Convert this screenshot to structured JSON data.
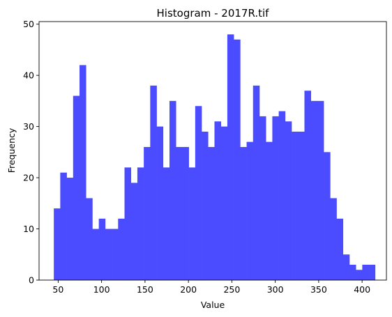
{
  "chart_data": {
    "type": "bar",
    "title": "Histogram - 2017R.tif",
    "xlabel": "Value",
    "ylabel": "Frequency",
    "bin_start": 45,
    "bin_width": 7.4,
    "values": [
      14,
      21,
      20,
      36,
      42,
      16,
      10,
      12,
      10,
      10,
      12,
      22,
      19,
      22,
      26,
      38,
      30,
      22,
      35,
      26,
      26,
      22,
      34,
      29,
      26,
      31,
      30,
      48,
      47,
      26,
      27,
      38,
      32,
      27,
      32,
      33,
      31,
      29,
      29,
      37,
      35,
      35,
      25,
      16,
      12,
      5,
      3,
      2,
      3,
      3
    ],
    "xlim": [
      28,
      428
    ],
    "ylim": [
      0,
      50.5
    ],
    "xticks": [
      50,
      100,
      150,
      200,
      250,
      300,
      350,
      400
    ],
    "yticks": [
      0,
      10,
      20,
      30,
      40,
      50
    ],
    "bar_color": "#4b4bff",
    "grid": false
  }
}
